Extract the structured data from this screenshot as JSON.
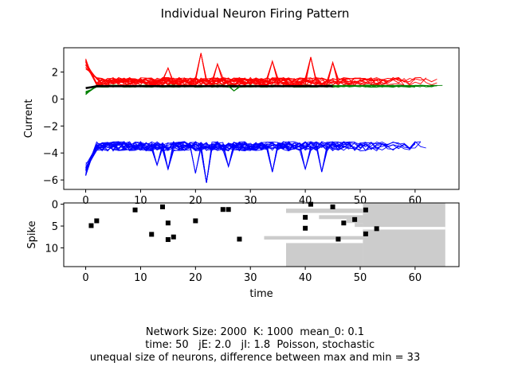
{
  "chart_data": [
    {
      "type": "line",
      "title": "Individual Neuron Firing Pattern",
      "ylabel": "Current",
      "xlabel": "",
      "xlim": [
        -4,
        68
      ],
      "ylim": [
        -6.7,
        3.8
      ],
      "xticks": [
        0,
        10,
        20,
        30,
        40,
        50,
        60
      ],
      "yticks": [
        -6,
        -4,
        -2,
        0,
        2
      ],
      "ytick_labels": [
        "−6",
        "−4",
        "−2",
        "0",
        "2"
      ],
      "grid": false,
      "series": [
        {
          "color": "#ff0000",
          "count": 20,
          "baseline": 1.3,
          "spread": 0.3,
          "start": 2.6
        },
        {
          "color": "#008000",
          "count": 12,
          "baseline": 0.95,
          "spread": 0.08,
          "start": 0.4
        },
        {
          "color": "#0000ff",
          "count": 20,
          "baseline": -3.5,
          "spread": 0.35,
          "start": -5.2
        },
        {
          "color": "#000000",
          "count": 1,
          "baseline": 0.95,
          "spread": 0.0,
          "start": 0.8
        }
      ],
      "events": [
        {
          "series": 0,
          "x": 21,
          "y": 3.4
        },
        {
          "series": 0,
          "x": 24,
          "y": 2.6
        },
        {
          "series": 0,
          "x": 34,
          "y": 2.8
        },
        {
          "series": 0,
          "x": 41,
          "y": 3.1
        },
        {
          "series": 0,
          "x": 45,
          "y": 2.7
        },
        {
          "series": 0,
          "x": 15,
          "y": 2.3
        },
        {
          "series": 2,
          "x": 22,
          "y": -6.2
        },
        {
          "series": 2,
          "x": 15,
          "y": -5.2
        },
        {
          "series": 2,
          "x": 20,
          "y": -5.5
        },
        {
          "series": 2,
          "x": 34,
          "y": -5.4
        },
        {
          "series": 2,
          "x": 40,
          "y": -5.2
        },
        {
          "series": 2,
          "x": 43,
          "y": -5.4
        },
        {
          "series": 2,
          "x": 13,
          "y": -4.9
        },
        {
          "series": 2,
          "x": 26,
          "y": -5.0
        },
        {
          "series": 1,
          "x": 27,
          "y": 0.6
        }
      ]
    },
    {
      "type": "scatter",
      "title": "",
      "ylabel": "Spike",
      "xlabel": "time",
      "xlim": [
        -4,
        68
      ],
      "ylim": [
        14.3,
        -0.3
      ],
      "xticks": [
        0,
        10,
        20,
        30,
        40,
        50,
        60
      ],
      "yticks": [
        0,
        5,
        10
      ],
      "grid": false,
      "spikes": [
        {
          "x": 9,
          "y": 1.3
        },
        {
          "x": 14,
          "y": 0.6
        },
        {
          "x": 25,
          "y": 1.2
        },
        {
          "x": 26,
          "y": 1.2
        },
        {
          "x": 41,
          "y": 0
        },
        {
          "x": 45,
          "y": 0.6
        },
        {
          "x": 51,
          "y": 1.3
        },
        {
          "x": 2,
          "y": 3.8
        },
        {
          "x": 1,
          "y": 4.9
        },
        {
          "x": 15,
          "y": 4.3
        },
        {
          "x": 20,
          "y": 3.8
        },
        {
          "x": 40,
          "y": 3
        },
        {
          "x": 49,
          "y": 3.5
        },
        {
          "x": 47,
          "y": 4.3
        },
        {
          "x": 40,
          "y": 5.5
        },
        {
          "x": 53,
          "y": 5.6
        },
        {
          "x": 12,
          "y": 6.9
        },
        {
          "x": 51,
          "y": 6.8
        },
        {
          "x": 16,
          "y": 7.5
        },
        {
          "x": 15,
          "y": 8.1
        },
        {
          "x": 28,
          "y": 8.0
        },
        {
          "x": 46,
          "y": 8.0
        }
      ],
      "durations": [
        {
          "y0": -0.3,
          "y1": 14.3,
          "x0": 50.5,
          "x1": 65.5
        },
        {
          "y0": 1.0,
          "y1": 2.0,
          "x0": 36.5,
          "x1": 50.5
        },
        {
          "y0": 2.5,
          "y1": 3.4,
          "x0": 42.5,
          "x1": 50.5
        },
        {
          "y0": 3.4,
          "y1": 4.3,
          "x0": 47.5,
          "x1": 58.5
        },
        {
          "y0": 4.3,
          "y1": 5.2,
          "x0": 49,
          "x1": 50.5
        },
        {
          "y0": 7.3,
          "y1": 8.1,
          "x0": 32.5,
          "x1": 50.5
        },
        {
          "y0": 8.1,
          "y1": 8.9,
          "x0": 50.5,
          "x1": 56.5
        },
        {
          "y0": 5.8,
          "y1": 6.4,
          "x0": 53.5,
          "x1": 50.5
        },
        {
          "y0": 8.9,
          "y1": 14.3,
          "x0": 36.5,
          "x1": 50.5
        }
      ],
      "gaps": [
        {
          "y0": 5.2,
          "y1": 5.8,
          "x0": 50.5,
          "x1": 65.5
        }
      ]
    }
  ],
  "caption": {
    "line1": "Network Size: 2000  K: 1000  mean_0: 0.1",
    "line2": "   time: 50   jE: 2.0   jI: 1.8  Poisson, stochastic",
    "line3": "unequal size of neurons, difference between max and min = 33"
  },
  "colors": {
    "spike": "#000000",
    "duration": "#cccccc",
    "axis": "#000000"
  }
}
